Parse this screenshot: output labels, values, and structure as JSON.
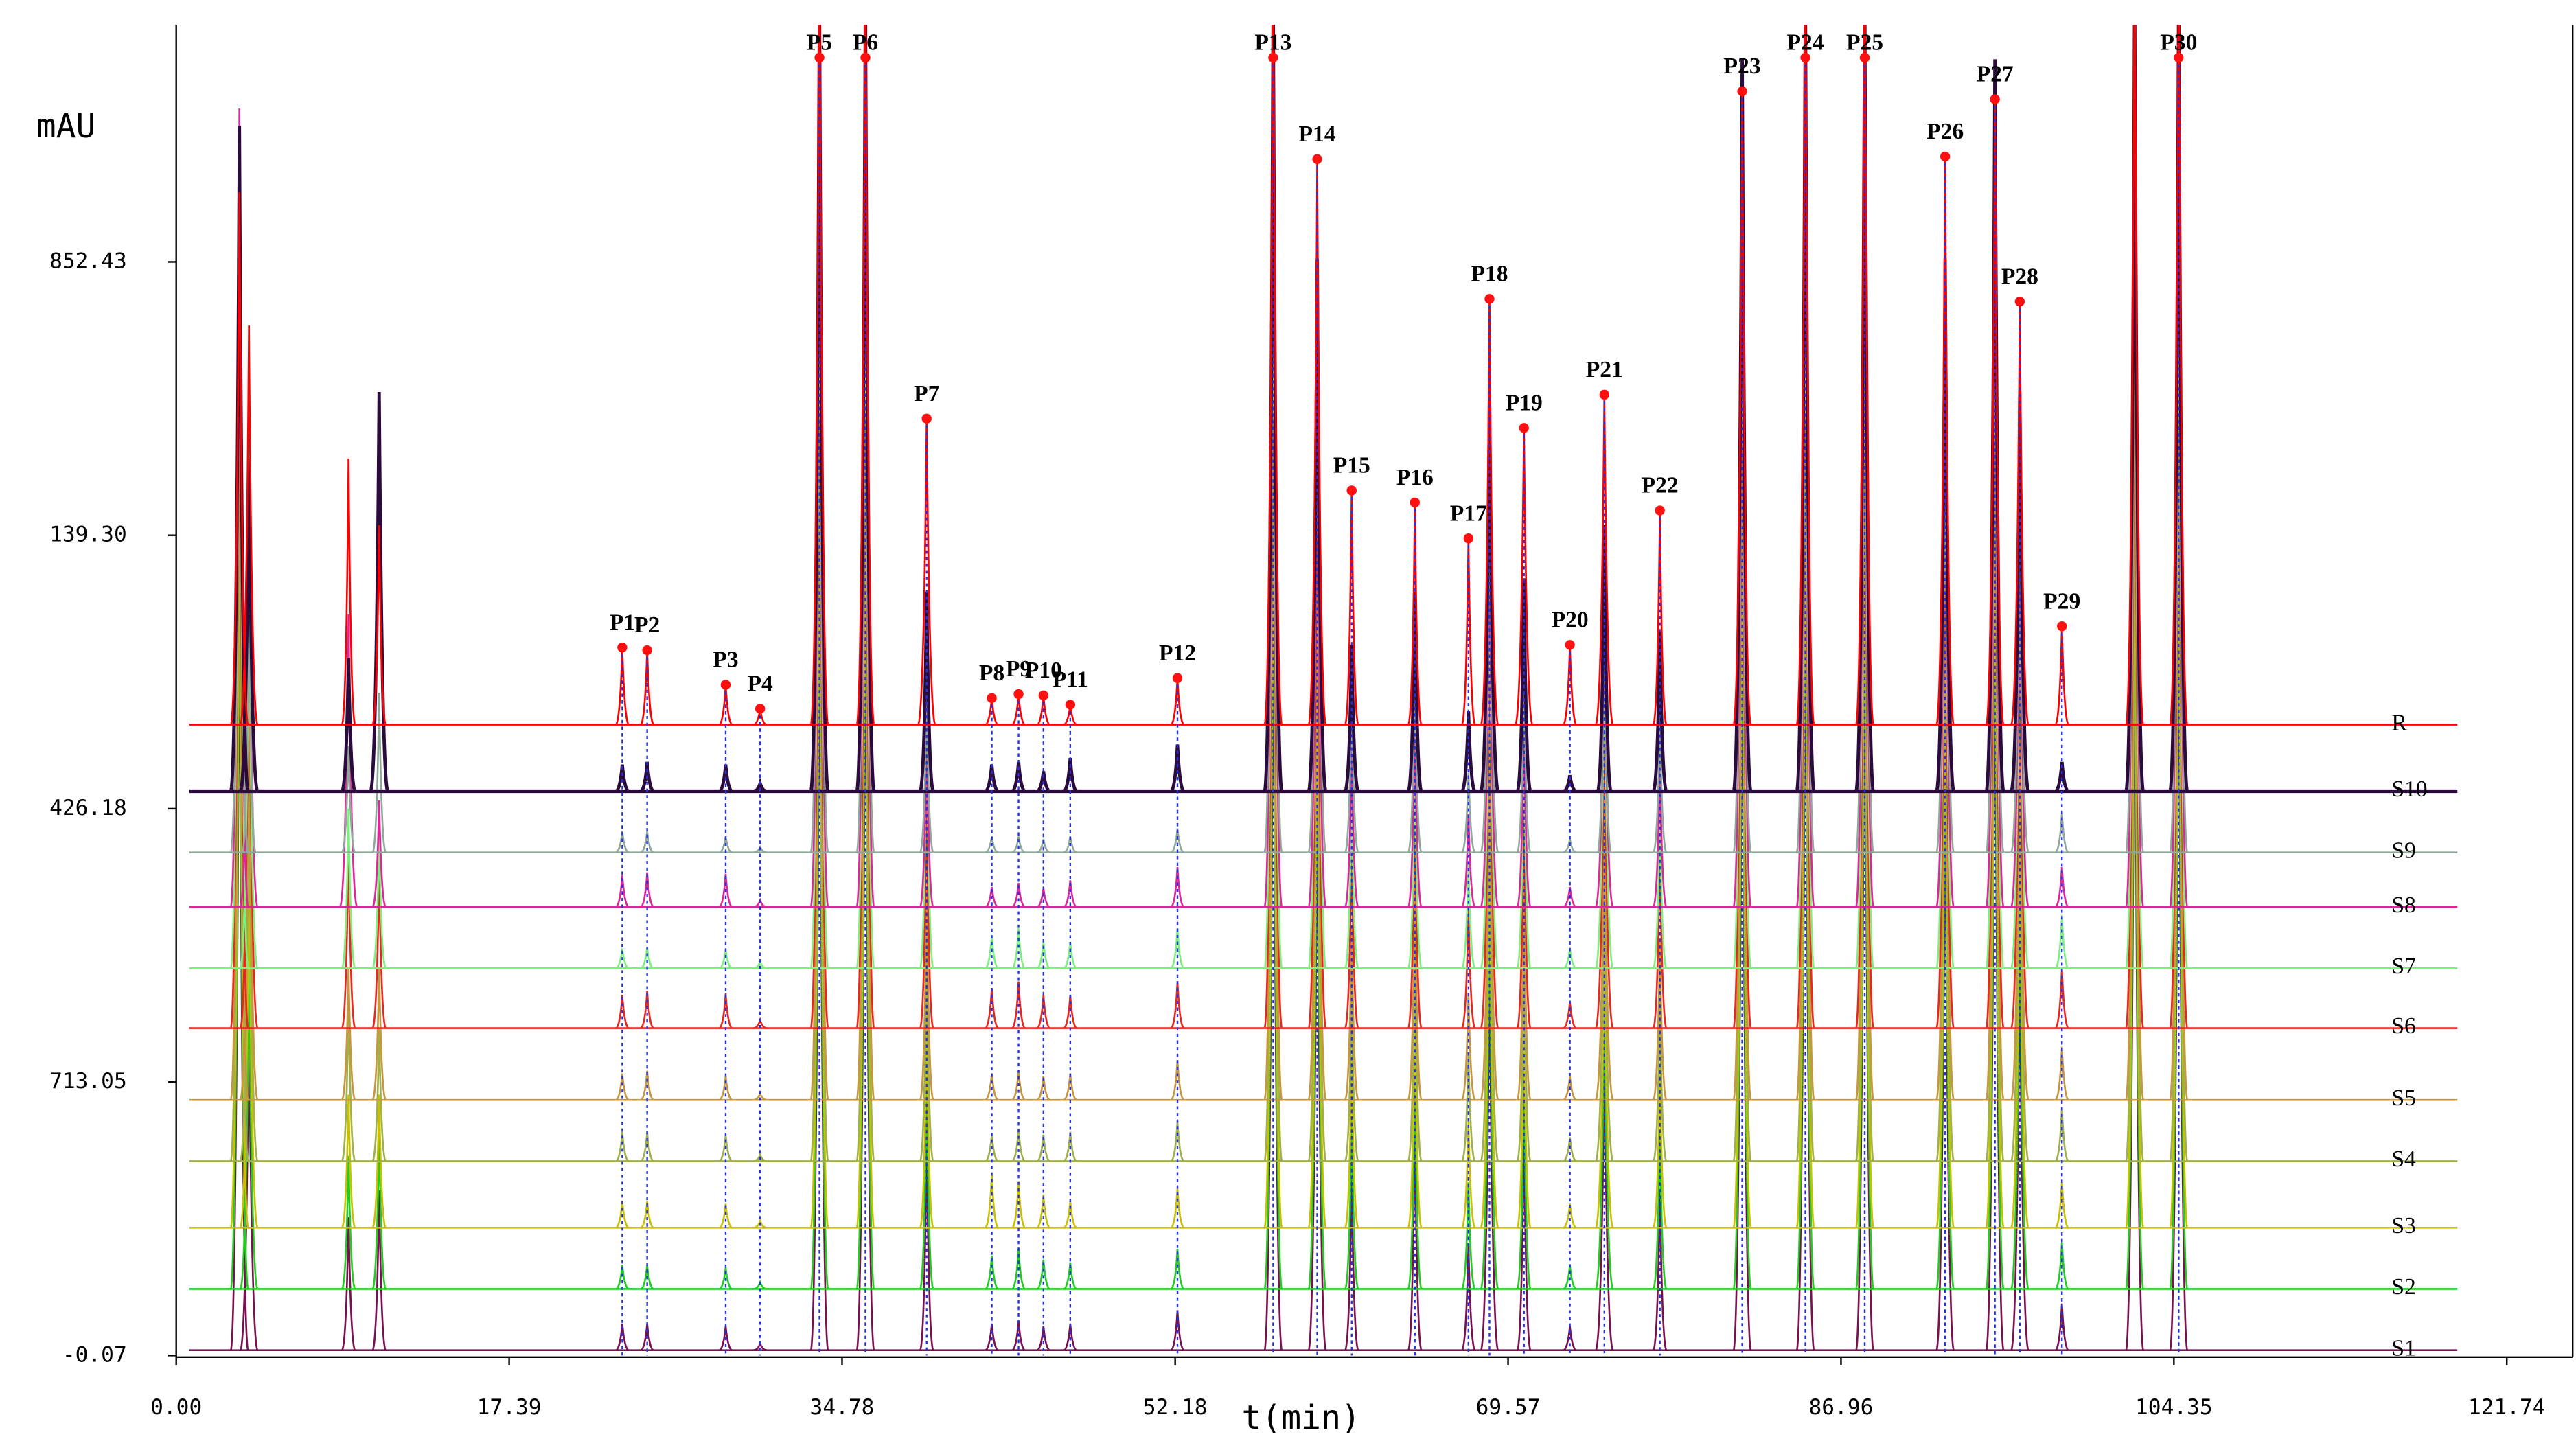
{
  "chart_data": {
    "type": "chromatogram",
    "y_label": "mAU",
    "x_label": "t(min)",
    "y_labels": [
      "-0.07",
      "713.05",
      "426.18",
      "139.30",
      "852.43"
    ],
    "xlim": [
      0,
      121.74
    ],
    "xticks": [
      {
        "value": 0,
        "label": "0.00"
      },
      17.39,
      34.78,
      52.18,
      69.57,
      86.96,
      104.35,
      121.74
    ],
    "ylim": [
      0,
      100
    ],
    "peaks": {
      "times": [
        3.3,
        3.8,
        9.0,
        10.6,
        23.3,
        24.6,
        28.7,
        30.5,
        33.6,
        36.0,
        39.2,
        42.6,
        44.0,
        45.3,
        46.7,
        52.3,
        57.3,
        59.6,
        61.4,
        64.7,
        67.5,
        68.6,
        70.4,
        72.8,
        74.6,
        77.5,
        81.8,
        85.1,
        88.2,
        92.4,
        95.0,
        96.3,
        98.5,
        102.3,
        104.6
      ],
      "labels": [
        null,
        null,
        null,
        null,
        "P1",
        "P2",
        "P3",
        "P4",
        "P5",
        "P6",
        "P7",
        "P8",
        "P9",
        "P10",
        "P11",
        "P12",
        "P13",
        "P14",
        "P15",
        "P16",
        "P17",
        "P18",
        "P19",
        "P20",
        "P21",
        "P22",
        "P23",
        "P24",
        "P25",
        "P26",
        "P27",
        "P28",
        "P29",
        null,
        "P30"
      ]
    },
    "series": [
      {
        "name": "S1",
        "color": "#7a1050",
        "offset": 0.4,
        "values": [
          60,
          25,
          10,
          12,
          2.0,
          2.0,
          1.8,
          0.5,
          60,
          60,
          16,
          2.0,
          2.2,
          1.8,
          2.0,
          3.0,
          60,
          44,
          13,
          17,
          8,
          30,
          17,
          1.8,
          22,
          12,
          58,
          60,
          60,
          44,
          58,
          30,
          3.5,
          60,
          60
        ]
      },
      {
        "name": "S2",
        "color": "#22cc22",
        "offset": 5.0,
        "values": [
          60,
          25,
          10,
          12,
          1.8,
          1.8,
          1.6,
          0.5,
          60,
          60,
          16,
          2.5,
          3.0,
          2.2,
          2.0,
          3.0,
          60,
          44,
          13,
          17,
          8,
          30,
          17,
          1.8,
          22,
          12,
          58,
          60,
          60,
          44,
          58,
          30,
          3.5,
          60,
          60
        ]
      },
      {
        "name": "S3",
        "color": "#c8c000",
        "offset": 9.6,
        "values": [
          60,
          28,
          10,
          10,
          2.0,
          2.0,
          1.8,
          0.5,
          60,
          60,
          16,
          4.0,
          3.5,
          2.5,
          2.0,
          3.0,
          60,
          44,
          13,
          17,
          8,
          30,
          17,
          1.8,
          22,
          12,
          58,
          60,
          60,
          44,
          58,
          30,
          3.5,
          60,
          60
        ]
      },
      {
        "name": "S4",
        "color": "#a0b04a",
        "offset": 14.6,
        "values": [
          60,
          30,
          12,
          10,
          2.2,
          2.2,
          2.0,
          0.5,
          60,
          60,
          16,
          2.0,
          2.4,
          2.0,
          2.2,
          3.0,
          60,
          44,
          13,
          17,
          8,
          30,
          17,
          1.8,
          22,
          12,
          58,
          60,
          60,
          44,
          58,
          30,
          4.0,
          60,
          60
        ]
      },
      {
        "name": "S5",
        "color": "#c8963c",
        "offset": 19.2,
        "values": [
          60,
          30,
          10,
          10,
          2.0,
          2.2,
          1.8,
          0.5,
          60,
          60,
          16,
          2.0,
          2.2,
          1.8,
          2.0,
          3.0,
          60,
          44,
          13,
          17,
          8,
          30,
          17,
          1.8,
          22,
          12,
          58,
          60,
          60,
          44,
          58,
          30,
          4.0,
          60,
          60
        ]
      },
      {
        "name": "S6",
        "color": "#e8281e",
        "offset": 24.6,
        "values": [
          60,
          32,
          14,
          12,
          2.5,
          2.8,
          2.6,
          0.6,
          60,
          60,
          18,
          3.0,
          3.5,
          2.5,
          2.5,
          3.5,
          60,
          46,
          14,
          18,
          9,
          32,
          18,
          2.0,
          24,
          14,
          58,
          60,
          60,
          44,
          58,
          32,
          4.5,
          60,
          60
        ]
      },
      {
        "name": "S7",
        "color": "#7cf07c",
        "offset": 29.1,
        "values": [
          60,
          28,
          12,
          10,
          1.5,
          1.6,
          1.4,
          0.5,
          60,
          60,
          20,
          2.5,
          3.0,
          2.0,
          2.0,
          3.0,
          60,
          50,
          13,
          16,
          8,
          30,
          18,
          1.5,
          24,
          12,
          58,
          60,
          60,
          44,
          58,
          32,
          4.0,
          60,
          60
        ]
      },
      {
        "name": "S8",
        "color": "#e0259b",
        "offset": 33.7,
        "values": [
          60,
          30,
          22,
          8,
          2.4,
          2.6,
          2.5,
          0.5,
          60,
          60,
          14,
          1.5,
          1.8,
          1.4,
          2.0,
          3.0,
          60,
          42,
          12,
          15,
          7,
          28,
          15,
          1.5,
          22,
          11,
          55,
          60,
          60,
          42,
          55,
          30,
          3.0,
          60,
          60
        ]
      },
      {
        "name": "S9",
        "color": "#8fa89a",
        "offset": 37.8,
        "values": [
          45,
          20,
          8,
          12,
          1.6,
          1.6,
          1.2,
          0.4,
          60,
          60,
          12,
          1.2,
          1.2,
          1.0,
          1.2,
          1.8,
          60,
          45,
          12,
          14,
          6,
          28,
          14,
          1.0,
          20,
          10,
          55,
          60,
          60,
          42,
          55,
          28,
          3.0,
          60,
          60
        ]
      },
      {
        "name": "S10",
        "color": "#2b0a3d",
        "offset": 42.4,
        "values": [
          50,
          25,
          10,
          30,
          2.0,
          2.2,
          2.0,
          0.6,
          60,
          60,
          15,
          2.0,
          2.2,
          1.5,
          2.5,
          3.5,
          60,
          40,
          11,
          15,
          6,
          30,
          16,
          1.2,
          20,
          12,
          55,
          60,
          60,
          40,
          55,
          30,
          2.2,
          60,
          60
        ]
      },
      {
        "name": "R",
        "color": "#ff0000",
        "offset": 47.4,
        "values": [
          40,
          30,
          20,
          15,
          5.8,
          5.6,
          3.0,
          1.2,
          60,
          60,
          23,
          2.0,
          2.3,
          2.2,
          1.5,
          3.5,
          60,
          42.5,
          17.6,
          16.7,
          14,
          32,
          22.3,
          6,
          24.8,
          16.1,
          47.6,
          60,
          60,
          42.7,
          47,
          31.8,
          7.4,
          60,
          60
        ]
      }
    ]
  }
}
